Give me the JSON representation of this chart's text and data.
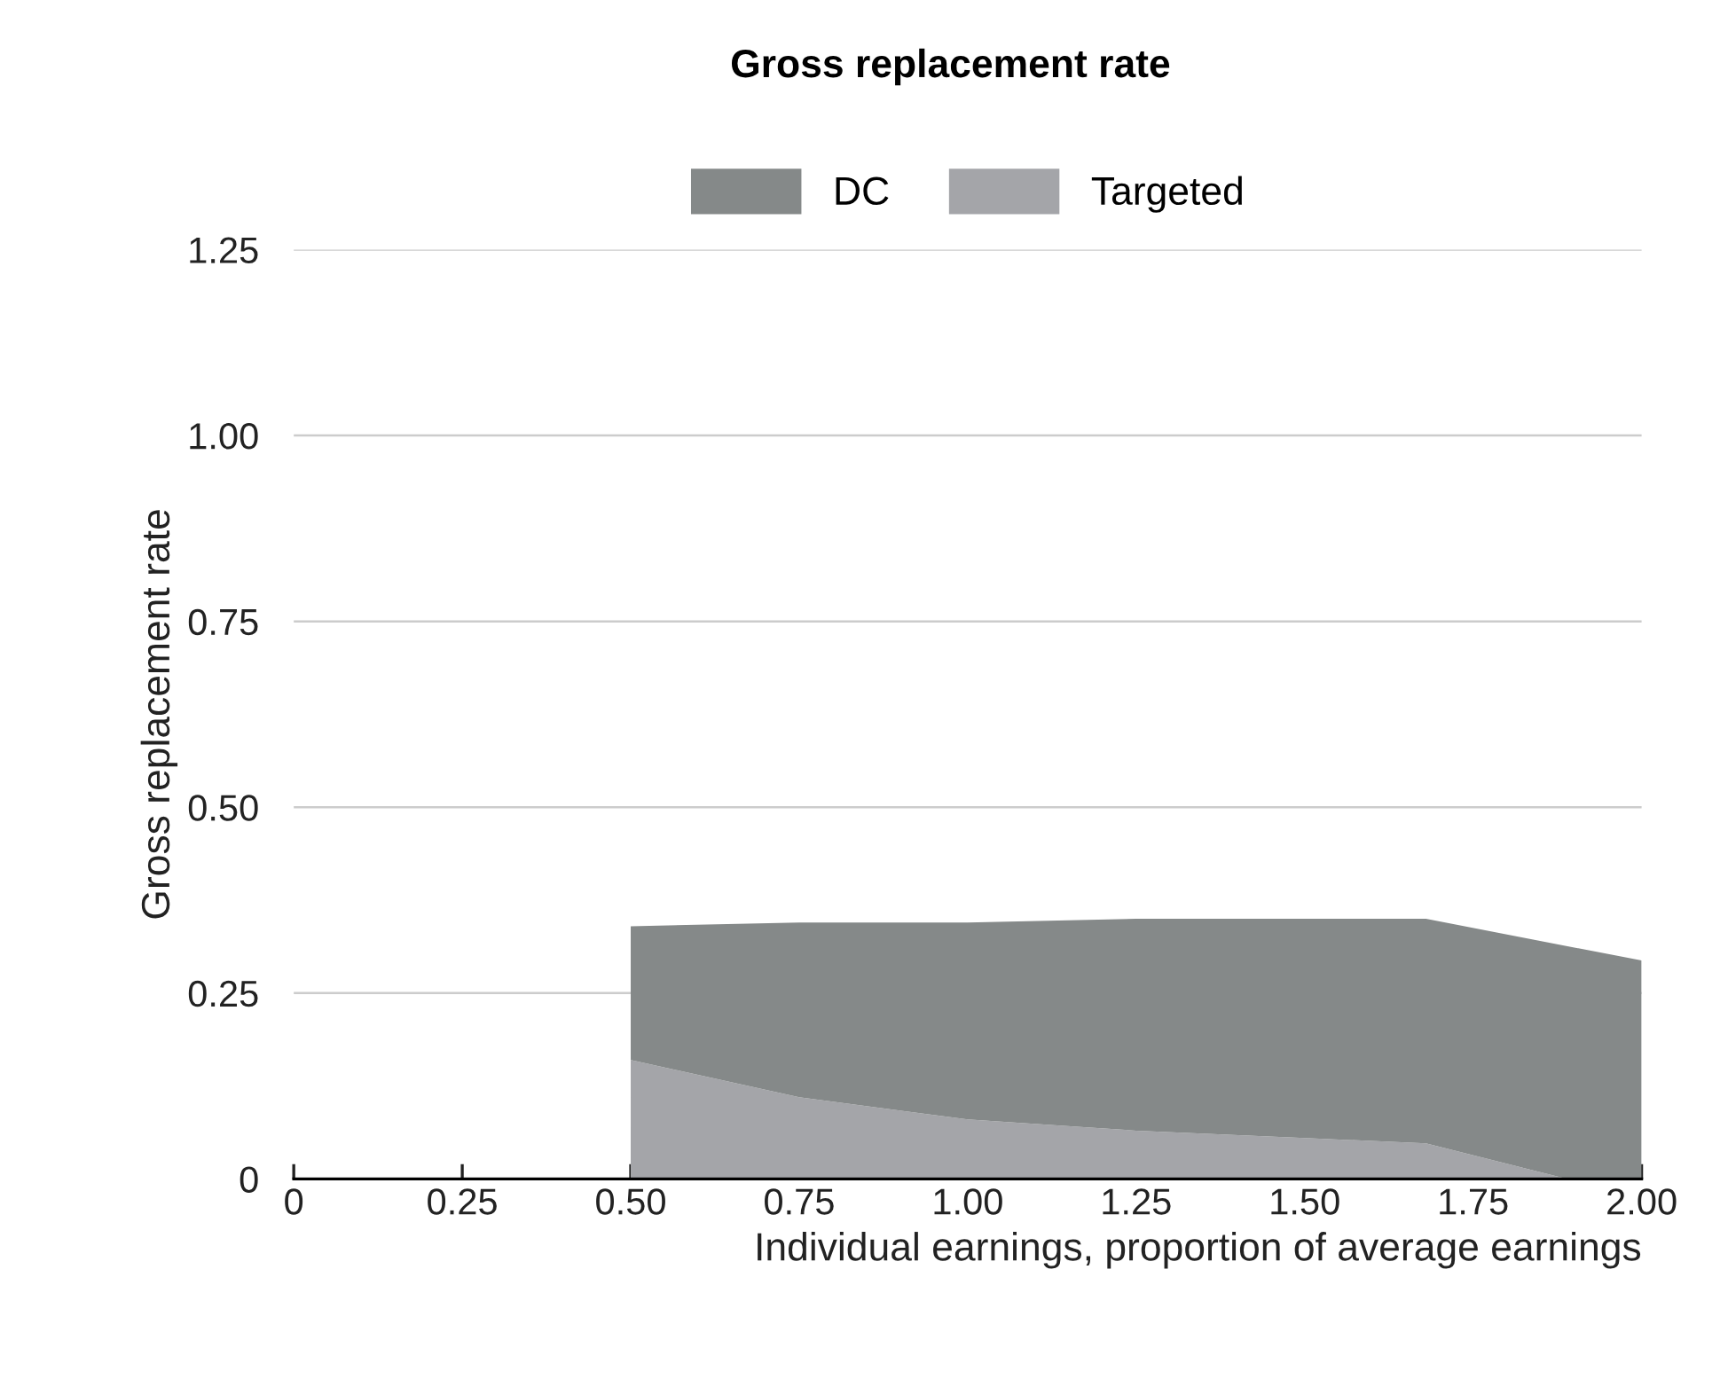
{
  "chart_data": {
    "type": "area",
    "title": "Gross replacement rate",
    "xlabel": "Individual earnings, proportion of average earnings",
    "ylabel": "Gross replacement rate",
    "stacked": true,
    "x": [
      0.5,
      0.75,
      1.0,
      1.25,
      1.5,
      1.68,
      1.89,
      2.0
    ],
    "series": [
      {
        "name": "Targeted",
        "color": "#a4a5a9",
        "values": [
          0.16,
          0.11,
          0.08,
          0.065,
          0.055,
          0.048,
          0.0,
          0.0
        ]
      },
      {
        "name": "DC",
        "color": "#858989",
        "values": [
          0.18,
          0.235,
          0.265,
          0.285,
          0.295,
          0.302,
          0.313,
          0.294
        ]
      }
    ],
    "xlim": [
      0,
      2.0
    ],
    "ylim": [
      0,
      1.25
    ],
    "xticks": [
      0,
      {
        "value": 0.25,
        "label": "0.25"
      },
      {
        "value": 0.5,
        "label": "0.50"
      },
      {
        "value": 0.75,
        "label": "0.75"
      },
      {
        "value": 1.0,
        "label": "1.00"
      },
      {
        "value": 1.25,
        "label": "1.25"
      },
      {
        "value": 1.5,
        "label": "1.50"
      },
      {
        "value": 1.75,
        "label": "1.75"
      },
      {
        "value": 2.0,
        "label": "2.00"
      }
    ],
    "yticks": [
      0,
      {
        "value": 0.25,
        "label": "0.25"
      },
      {
        "value": 0.5,
        "label": "0.50"
      },
      {
        "value": 0.75,
        "label": "0.75"
      },
      {
        "value": 1.0,
        "label": "1.00"
      },
      {
        "value": 1.25,
        "label": "1.25"
      }
    ],
    "grid": "y",
    "legend": "top"
  }
}
